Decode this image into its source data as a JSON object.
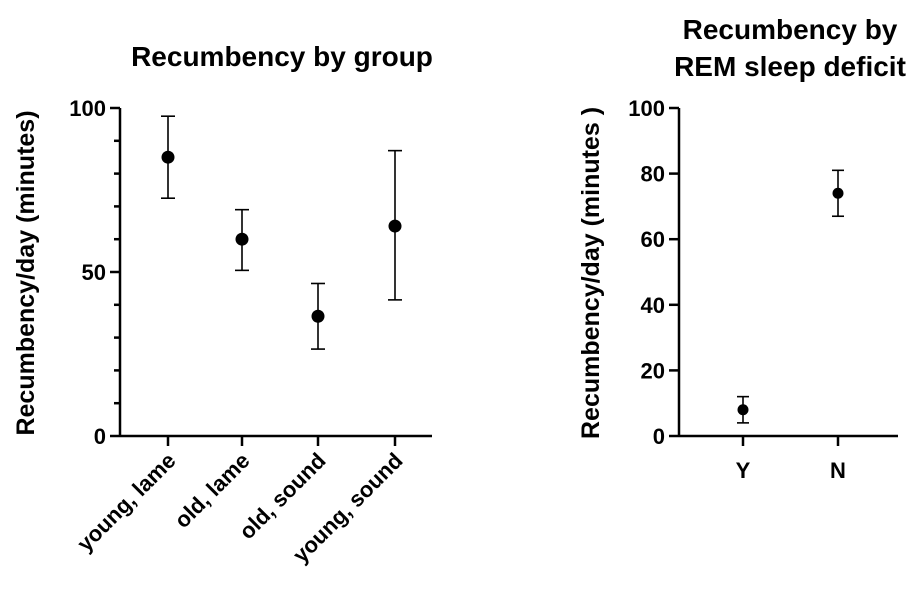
{
  "chart_data": [
    {
      "type": "scatter",
      "title": "Recumbency by group",
      "ylabel": "Recumbency/day (minutes)",
      "xlabel": "",
      "categories": [
        "young, lame",
        "old, lame",
        "old, sound",
        "young, sound"
      ],
      "values": [
        85,
        60,
        36.5,
        64
      ],
      "error_low": [
        72.5,
        50.5,
        26.5,
        41.5
      ],
      "error_high": [
        97.5,
        69,
        46.5,
        87
      ],
      "ylim": [
        0,
        100
      ],
      "yticks_major": [
        0,
        50,
        100
      ],
      "yticks_minor": [
        10,
        20,
        30,
        40,
        60,
        70,
        80,
        90
      ],
      "error_bars": true,
      "grid": false
    },
    {
      "type": "scatter",
      "title": "Recumbency by REM sleep deficit",
      "title_lines": [
        "Recumbency by",
        "REM sleep deficit"
      ],
      "ylabel": "Recumbency/day (minutes )",
      "xlabel": "",
      "categories": [
        "Y",
        "N"
      ],
      "values": [
        8,
        74
      ],
      "error_low": [
        4,
        67
      ],
      "error_high": [
        12,
        81
      ],
      "ylim": [
        0,
        100
      ],
      "yticks_major": [
        0,
        20,
        40,
        60,
        80,
        100
      ],
      "error_bars": true,
      "grid": false
    }
  ]
}
